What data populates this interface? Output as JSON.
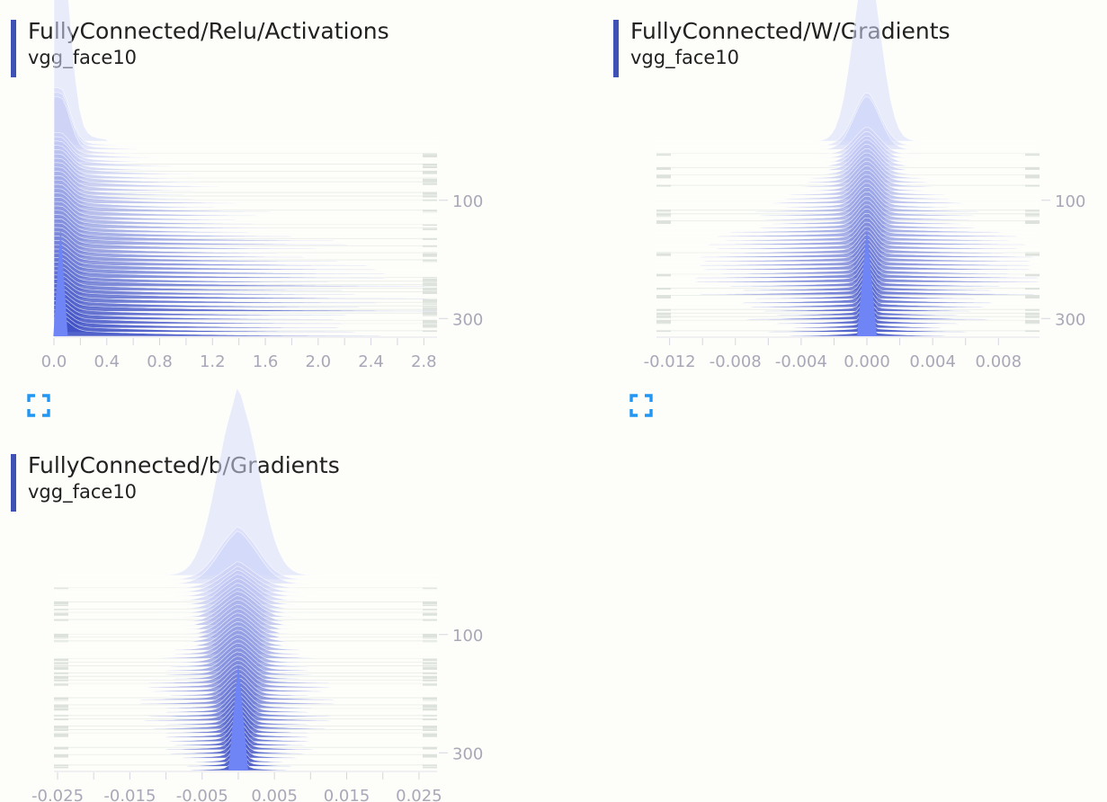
{
  "colors": {
    "accent": "#3f51b5",
    "hist_dark": "#3f51c5",
    "hist_light": "#d7dcfb",
    "hist_front": "#6f85f5",
    "gutter": "#dde3dc",
    "axis_text": "#a8a8b8",
    "expand_icon": "#2196f3"
  },
  "cards": [
    {
      "title": "FullyConnected/Relu/Activations",
      "run": "vgg_face10",
      "expand_icon": "fullscreen-icon"
    },
    {
      "title": "FullyConnected/W/Gradients",
      "run": "vgg_face10",
      "expand_icon": "fullscreen-icon"
    },
    {
      "title": "FullyConnected/b/Gradients",
      "run": "vgg_face10",
      "expand_icon": "fullscreen-icon"
    }
  ],
  "chart_data": [
    {
      "type": "histogram-offset",
      "title": "FullyConnected/Relu/Activations",
      "series_name": "vgg_face10",
      "xlim": [
        0.0,
        2.9
      ],
      "x_ticks": [
        "0.0",
        "0.4",
        "0.8",
        "1.2",
        "1.6",
        "2.0",
        "2.4",
        "2.8"
      ],
      "x_tick_values": [
        0.0,
        0.4,
        0.8,
        1.2,
        1.6,
        2.0,
        2.4,
        2.8
      ],
      "step_range": [
        0,
        330
      ],
      "y_ticks": [
        "100",
        "300"
      ],
      "y_tick_values": [
        100,
        300
      ],
      "distribution": "relu",
      "center": 0.05,
      "peak_spread": 0.05,
      "tail_max": 2.9
    },
    {
      "type": "histogram-offset",
      "title": "FullyConnected/W/Gradients",
      "series_name": "vgg_face10",
      "xlim": [
        -0.0128,
        0.0105
      ],
      "x_ticks": [
        "-0.012",
        "-0.008",
        "-0.004",
        "0.000",
        "0.004",
        "0.008"
      ],
      "x_tick_values": [
        -0.012,
        -0.008,
        -0.004,
        0.0,
        0.004,
        0.008
      ],
      "step_range": [
        0,
        330
      ],
      "y_ticks": [
        "100",
        "300"
      ],
      "y_tick_values": [
        100,
        300
      ],
      "distribution": "symmetric",
      "center": 0.0,
      "peak_spread": 0.0003,
      "tail_max": 0.0105
    },
    {
      "type": "histogram-offset",
      "title": "FullyConnected/b/Gradients",
      "series_name": "vgg_face10",
      "xlim": [
        -0.0255,
        0.0275
      ],
      "x_ticks": [
        "-0.025",
        "-0.015",
        "-0.005",
        "0.005",
        "0.015",
        "0.025"
      ],
      "x_tick_values": [
        -0.025,
        -0.015,
        -0.005,
        0.005,
        0.015,
        0.025
      ],
      "step_range": [
        0,
        330
      ],
      "y_ticks": [
        "100",
        "300"
      ],
      "y_tick_values": [
        100,
        300
      ],
      "distribution": "symmetric",
      "center": 0.0,
      "peak_spread": 0.001,
      "tail_max": 0.0135
    }
  ]
}
